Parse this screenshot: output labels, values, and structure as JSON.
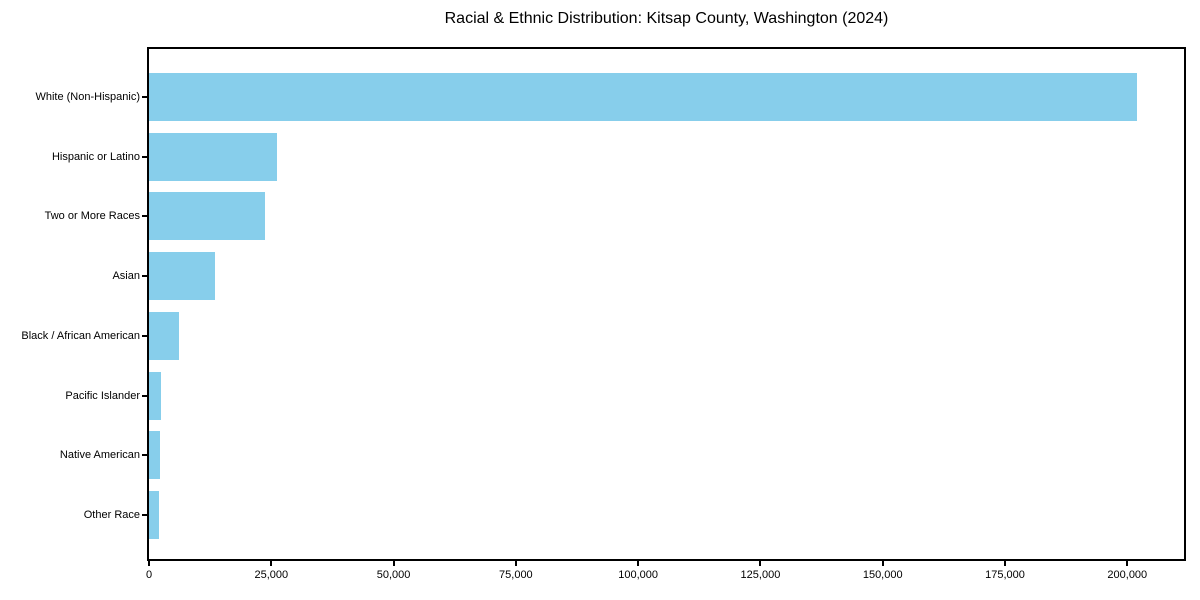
{
  "figure": {
    "title": "Racial & Ethnic Distribution: Kitsap County, Washington (2024)"
  },
  "chart_data": {
    "type": "bar",
    "orientation": "horizontal",
    "title": "Racial & Ethnic Distribution: Kitsap County, Washington (2024)",
    "categories": [
      "White (Non-Hispanic)",
      "Hispanic or Latino",
      "Two or More Races",
      "Asian",
      "Black / African American",
      "Pacific Islander",
      "Native American",
      "Other Race"
    ],
    "values": [
      202000,
      26100,
      23800,
      13400,
      6100,
      2500,
      2300,
      2000
    ],
    "xlabel": "",
    "ylabel": "",
    "xlim": [
      0,
      212000
    ],
    "x_ticks": [
      0,
      25000,
      50000,
      75000,
      100000,
      125000,
      150000,
      175000,
      200000
    ],
    "x_tick_labels": [
      "0",
      "25,000",
      "50,000",
      "75,000",
      "100,000",
      "125,000",
      "150,000",
      "175,000",
      "200,000"
    ],
    "bar_color": "#87CEEB",
    "background_color": "#FFFFFF",
    "axis_color": "#000000",
    "grid": false,
    "legend": "none",
    "category_axis_order": "largest_at_top"
  }
}
